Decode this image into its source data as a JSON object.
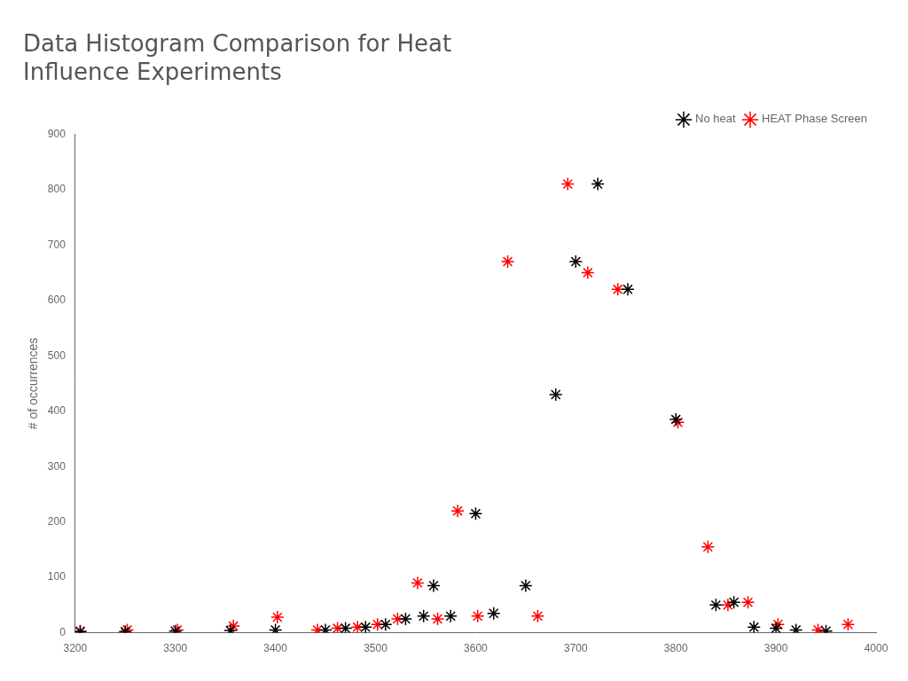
{
  "chart_data": {
    "type": "scatter",
    "title": "Data Histogram Comparison for Heat\nInfluence Experiments",
    "ylabel": "# of occurrences",
    "xlim": [
      3200,
      4000
    ],
    "ylim": [
      0,
      900
    ],
    "xticks": [
      3200,
      3300,
      3400,
      3500,
      3600,
      3700,
      3800,
      3900,
      4000
    ],
    "yticks": [
      0,
      100,
      200,
      300,
      400,
      500,
      600,
      700,
      800,
      900
    ],
    "grid": false,
    "legend": "upper right",
    "series": [
      {
        "name": "No heat",
        "color": "black",
        "marker": "star",
        "x": [
          3205,
          3250,
          3300,
          3355,
          3400,
          3450,
          3470,
          3490,
          3510,
          3530,
          3548,
          3558,
          3575,
          3600,
          3618,
          3650,
          3680,
          3700,
          3722,
          3752,
          3800,
          3840,
          3858,
          3878,
          3900,
          3920,
          3950
        ],
        "values": [
          2,
          2,
          3,
          4,
          5,
          5,
          8,
          10,
          15,
          25,
          30,
          85,
          30,
          215,
          35,
          85,
          430,
          670,
          810,
          620,
          385,
          50,
          55,
          10,
          8,
          5,
          3
        ]
      },
      {
        "name": "HEAT Phase Screen",
        "color": "red",
        "marker": "star",
        "x": [
          3205,
          3252,
          3302,
          3358,
          3402,
          3442,
          3462,
          3482,
          3502,
          3522,
          3542,
          3562,
          3582,
          3602,
          3632,
          3662,
          3692,
          3712,
          3742,
          3802,
          3832,
          3852,
          3872,
          3902,
          3942,
          3972
        ],
        "values": [
          3,
          5,
          5,
          12,
          28,
          5,
          8,
          10,
          15,
          25,
          90,
          25,
          220,
          30,
          670,
          30,
          810,
          650,
          620,
          380,
          155,
          50,
          55,
          15,
          5,
          15
        ]
      }
    ]
  }
}
